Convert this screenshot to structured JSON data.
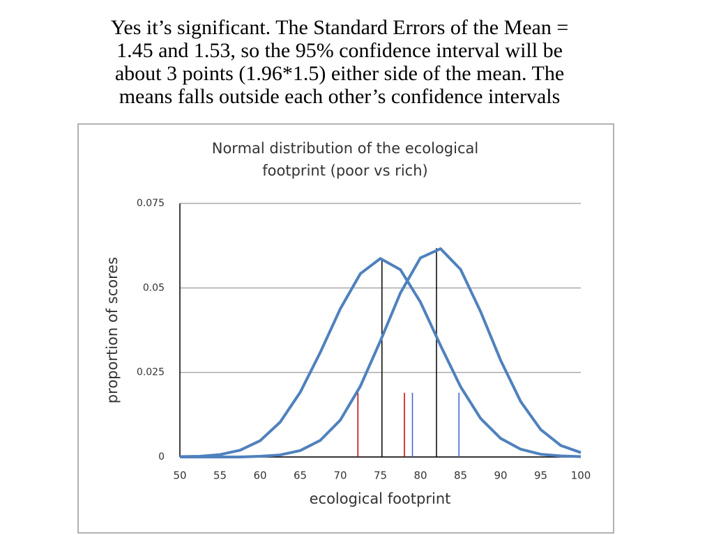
{
  "slide_text": [
    "Yes it’s significant. The Standard Errors of the Mean =",
    "1.45 and 1.53, so the 95% confidence interval will be",
    "about 3 points (1.96*1.5) either side of the mean. The",
    "means falls outside each other’s confidence intervals"
  ],
  "chart_data": {
    "type": "line",
    "title": [
      "Normal distribution  of the ecological",
      "footprint (poor  vs rich)"
    ],
    "x_label": "ecological footprint",
    "y_label": "proportion of scores",
    "x": [
      50,
      52.5,
      55,
      57.5,
      60,
      62.5,
      65,
      67.5,
      70,
      72.5,
      75,
      77.5,
      80,
      82.5,
      85,
      87.5,
      90,
      92.5,
      95,
      97.5,
      100
    ],
    "series": [
      {
        "color": "#4f81bd",
        "values": [
          0.0001,
          0.0002,
          0.0007,
          0.002,
          0.0048,
          0.0103,
          0.0191,
          0.0309,
          0.0438,
          0.0542,
          0.0587,
          0.0554,
          0.0458,
          0.033,
          0.0208,
          0.0114,
          0.0055,
          0.0023,
          0.0008,
          0.0003,
          0.0001
        ]
      },
      {
        "color": "#4f81bd",
        "values": [
          0,
          0,
          0,
          0,
          0.0002,
          0.0006,
          0.0019,
          0.0049,
          0.0109,
          0.0209,
          0.0343,
          0.0485,
          0.0589,
          0.0616,
          0.0555,
          0.043,
          0.0286,
          0.0164,
          0.0081,
          0.0034,
          0.0013
        ]
      }
    ],
    "markers": [
      {
        "x": 75.2,
        "y": 0.0587,
        "color": "#000000"
      },
      {
        "x": 82,
        "y": 0.0618,
        "color": "#000000"
      },
      {
        "x": 72.2,
        "y": 0.019,
        "color": "#c00000"
      },
      {
        "x": 78,
        "y": 0.019,
        "color": "#c00000"
      },
      {
        "x": 79,
        "y": 0.019,
        "color": "#3a5fcd"
      },
      {
        "x": 84.8,
        "y": 0.019,
        "color": "#3a5fcd"
      }
    ],
    "xlim": [
      50,
      100
    ],
    "xticks": [
      50,
      55,
      60,
      65,
      70,
      75,
      80,
      85,
      90,
      95,
      100
    ],
    "ylim": [
      0,
      0.075
    ],
    "yticks": [
      0,
      0.025,
      0.05,
      0.075
    ],
    "grid": true
  }
}
